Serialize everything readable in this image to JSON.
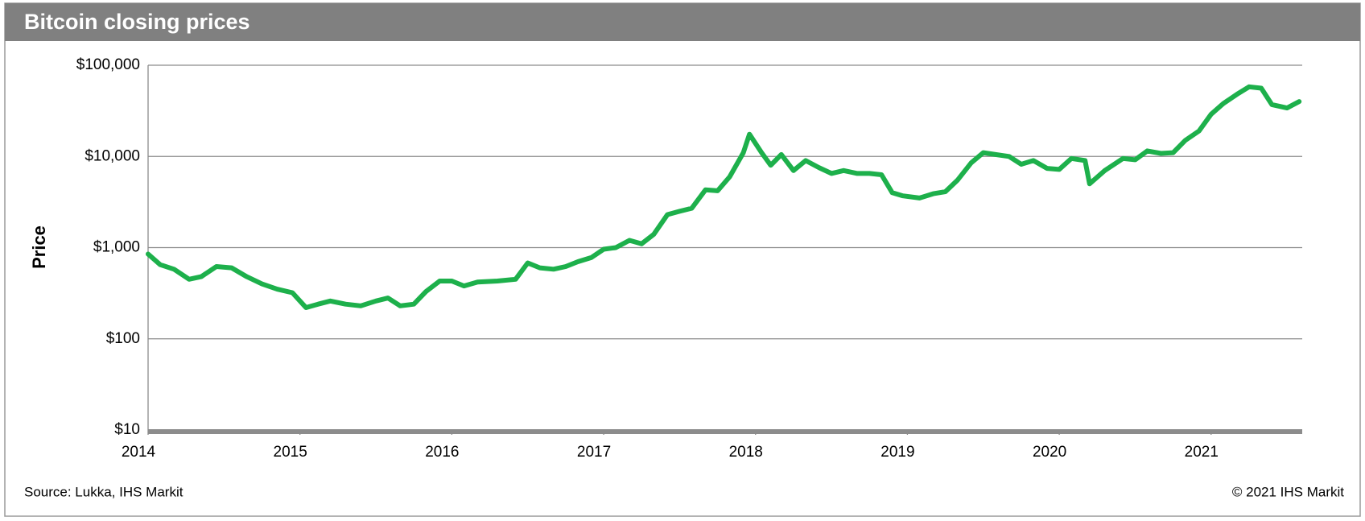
{
  "chart_data": {
    "type": "line",
    "title": "Bitcoin closing prices",
    "y_label": "Price",
    "source": "Source: Lukka, IHS Markit",
    "copyright": "© 2021 IHS Markit",
    "log_scale_y": true,
    "grid": true,
    "xlim": [
      2014.0,
      2021.6
    ],
    "xticks": [
      2014,
      2015,
      2016,
      2017,
      2018,
      2019,
      2020,
      2021
    ],
    "ylim": [
      10,
      100000
    ],
    "yticks": [
      {
        "value": 10,
        "label": "$10"
      },
      {
        "value": 100,
        "label": "$100"
      },
      {
        "value": 1000,
        "label": "$1,000"
      },
      {
        "value": 10000,
        "label": "$10,000"
      },
      {
        "value": 100000,
        "label": "$100,000"
      }
    ],
    "x": [
      2014.0,
      2014.08,
      2014.17,
      2014.27,
      2014.35,
      2014.45,
      2014.55,
      2014.65,
      2014.75,
      2014.85,
      2014.95,
      2015.04,
      2015.12,
      2015.2,
      2015.3,
      2015.4,
      2015.5,
      2015.58,
      2015.66,
      2015.75,
      2015.83,
      2015.92,
      2016.0,
      2016.08,
      2016.17,
      2016.3,
      2016.42,
      2016.5,
      2016.58,
      2016.67,
      2016.75,
      2016.83,
      2016.92,
      2017.0,
      2017.08,
      2017.17,
      2017.25,
      2017.33,
      2017.42,
      2017.5,
      2017.58,
      2017.67,
      2017.75,
      2017.83,
      2017.92,
      2017.96,
      2018.04,
      2018.1,
      2018.17,
      2018.25,
      2018.33,
      2018.42,
      2018.5,
      2018.58,
      2018.67,
      2018.75,
      2018.83,
      2018.9,
      2018.97,
      2019.08,
      2019.17,
      2019.25,
      2019.33,
      2019.42,
      2019.5,
      2019.58,
      2019.67,
      2019.75,
      2019.83,
      2019.92,
      2020.0,
      2020.08,
      2020.17,
      2020.2,
      2020.3,
      2020.42,
      2020.5,
      2020.58,
      2020.67,
      2020.75,
      2020.83,
      2020.92,
      2021.0,
      2021.08,
      2021.17,
      2021.25,
      2021.33,
      2021.4,
      2021.5,
      2021.58
    ],
    "series": [
      {
        "name": "Bitcoin",
        "color": "#1db04b",
        "values": [
          850,
          650,
          580,
          450,
          480,
          620,
          600,
          480,
          400,
          350,
          320,
          220,
          240,
          260,
          240,
          230,
          260,
          280,
          230,
          240,
          330,
          430,
          430,
          380,
          420,
          430,
          450,
          680,
          600,
          580,
          620,
          700,
          780,
          960,
          1000,
          1200,
          1100,
          1400,
          2300,
          2500,
          2700,
          4300,
          4200,
          6000,
          11000,
          17500,
          11000,
          8000,
          10500,
          7000,
          9000,
          7500,
          6500,
          7000,
          6500,
          6500,
          6300,
          4000,
          3700,
          3500,
          3900,
          4100,
          5500,
          8500,
          11000,
          10500,
          10000,
          8200,
          9000,
          7400,
          7200,
          9500,
          9000,
          5000,
          7000,
          9500,
          9200,
          11500,
          10800,
          11000,
          15000,
          19000,
          29000,
          38000,
          48000,
          58000,
          56000,
          37000,
          34000,
          40000
        ]
      }
    ]
  }
}
